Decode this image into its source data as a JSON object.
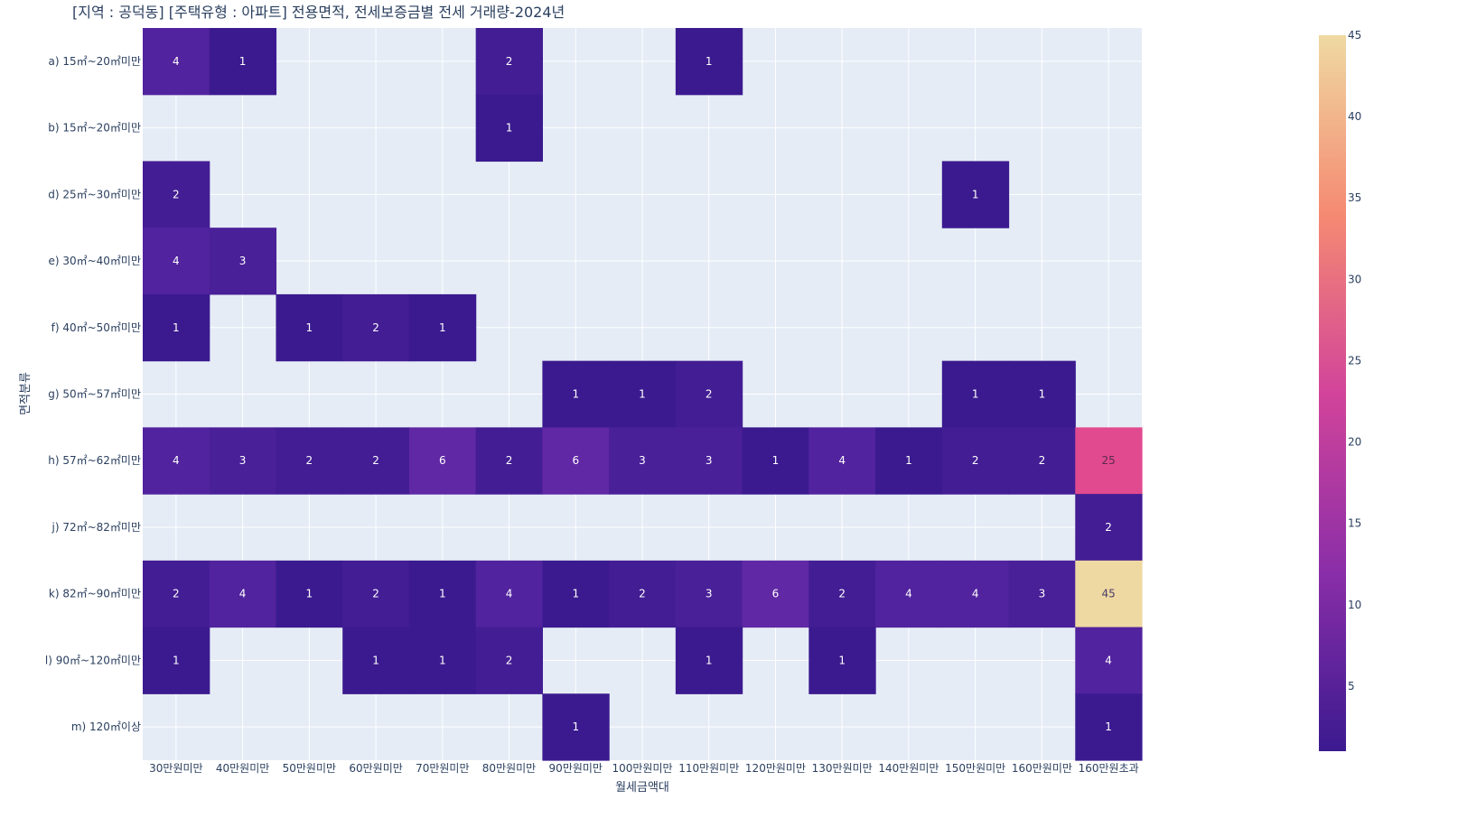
{
  "chart_data": {
    "type": "heatmap",
    "title": "[지역 : 공덕동] [주택유형 : 아파트] 전용면적, 전세보증금별 전세 거래량-2024년",
    "xlabel": "월세금액대",
    "ylabel": "면적분류",
    "x_categories": [
      "30만원미만",
      "40만원미만",
      "50만원미만",
      "60만원미만",
      "70만원미만",
      "80만원미만",
      "90만원미만",
      "100만원미만",
      "110만원미만",
      "120만원미만",
      "130만원미만",
      "140만원미만",
      "150만원미만",
      "160만원미만",
      "160만원초과"
    ],
    "y_categories": [
      "a) 15㎡~20㎡미만",
      "b) 15㎡~20㎡미만",
      "d) 25㎡~30㎡미만",
      "e) 30㎡~40㎡미만",
      "f) 40㎡~50㎡미만",
      "g) 50㎡~57㎡미만",
      "h) 57㎡~62㎡미만",
      "j) 72㎡~82㎡미만",
      "k) 82㎡~90㎡미만",
      "l) 90㎡~120㎡미만",
      "m) 120㎡이상"
    ],
    "values": [
      [
        4,
        1,
        null,
        null,
        null,
        2,
        null,
        null,
        1,
        null,
        null,
        null,
        null,
        null,
        null
      ],
      [
        null,
        null,
        null,
        null,
        null,
        1,
        null,
        null,
        null,
        null,
        null,
        null,
        null,
        null,
        null
      ],
      [
        2,
        null,
        null,
        null,
        null,
        null,
        null,
        null,
        null,
        null,
        null,
        null,
        1,
        null,
        null
      ],
      [
        4,
        3,
        null,
        null,
        null,
        null,
        null,
        null,
        null,
        null,
        null,
        null,
        null,
        null,
        null
      ],
      [
        1,
        null,
        1,
        2,
        1,
        null,
        null,
        null,
        null,
        null,
        null,
        null,
        null,
        null,
        null
      ],
      [
        null,
        null,
        null,
        null,
        null,
        null,
        1,
        1,
        2,
        null,
        null,
        null,
        1,
        1,
        null
      ],
      [
        4,
        3,
        2,
        2,
        6,
        2,
        6,
        3,
        3,
        1,
        4,
        1,
        2,
        2,
        25
      ],
      [
        null,
        null,
        null,
        null,
        null,
        null,
        null,
        null,
        null,
        null,
        null,
        null,
        null,
        null,
        2
      ],
      [
        2,
        4,
        1,
        2,
        1,
        4,
        1,
        2,
        3,
        6,
        2,
        4,
        4,
        3,
        45
      ],
      [
        1,
        null,
        null,
        1,
        1,
        2,
        null,
        null,
        1,
        null,
        1,
        null,
        null,
        null,
        4
      ],
      [
        null,
        null,
        null,
        null,
        null,
        null,
        1,
        null,
        null,
        null,
        null,
        null,
        null,
        null,
        1
      ]
    ],
    "zrange": [
      1,
      45
    ],
    "colorbar_ticks": [
      5,
      10,
      15,
      20,
      25,
      30,
      35,
      40,
      45
    ],
    "colorscale": [
      "#0d0887",
      "#46039f",
      "#7201a8",
      "#9c179e",
      "#bd3786",
      "#d8576b",
      "#ed7953",
      "#fb9f3a",
      "#fdca26",
      "#f0f921"
    ],
    "colors": {
      "plot_bg": "#e5ecf6",
      "grid": "#ffffff",
      "text": "#2a3f5f"
    },
    "grid": true,
    "legend": "colorbar-right"
  }
}
